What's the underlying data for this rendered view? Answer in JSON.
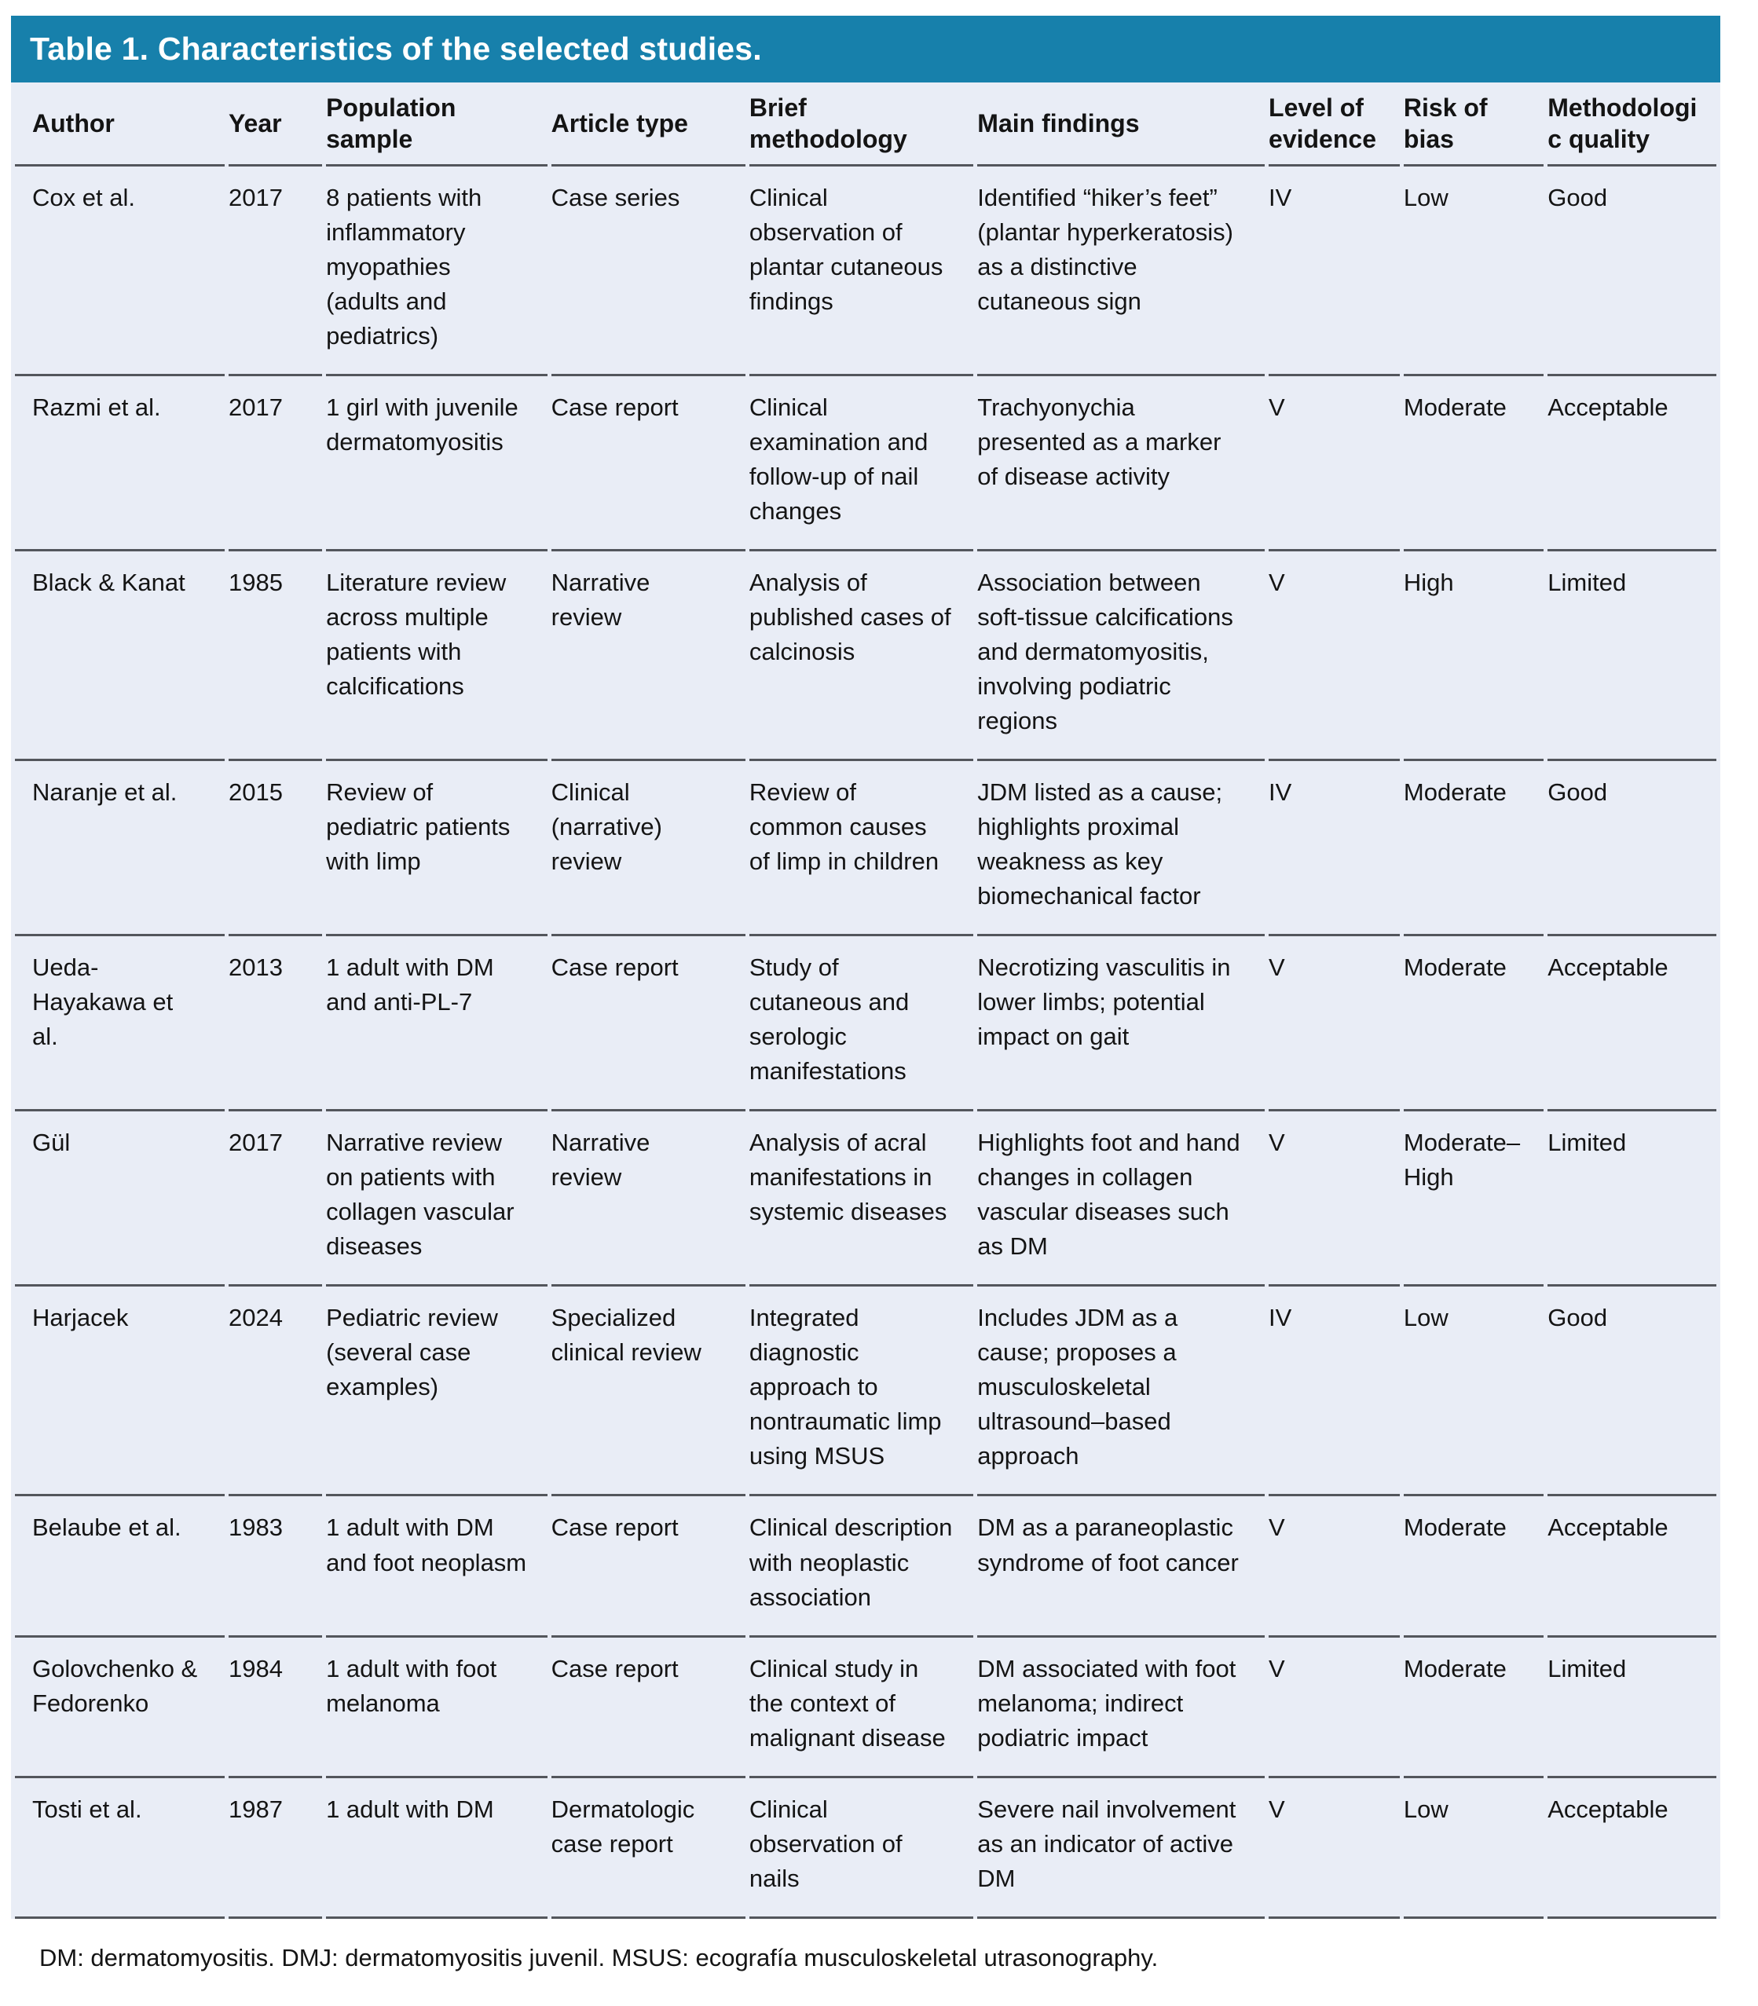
{
  "table": {
    "title": "Table 1. Characteristics of the selected studies.",
    "columns": [
      "Author",
      "Year",
      "Population sample",
      "Article type",
      "Brief methodology",
      "Main findings",
      "Level of evidence",
      "Risk of bias",
      "Methodologic quality"
    ],
    "rows": [
      [
        "Cox et al.",
        "2017",
        "8 patients with inflammatory myopathies (adults and pediatrics)",
        "Case series",
        "Clinical observation of plantar cutaneous findings",
        "Identified “hiker’s feet” (plantar hyperkeratosis) as a distinctive cutaneous sign",
        "IV",
        "Low",
        "Good"
      ],
      [
        "Razmi et al.",
        "2017",
        "1 girl with juvenile dermatomyositis",
        "Case report",
        "Clinical examination and follow-up of nail changes",
        "Trachyonychia presented as a marker of disease activity",
        "V",
        "Moderate",
        "Acceptable"
      ],
      [
        "Black & Kanat",
        "1985",
        "Literature review across multiple patients with calcifications",
        "Narrative review",
        "Analysis of published cases of calcinosis",
        "Association between soft-tissue calcifications and dermatomyositis, involving podiatric regions",
        "V",
        "High",
        "Limited"
      ],
      [
        "Naranje et al.",
        "2015",
        "Review of pediatric patients with limp",
        "Clinical (narrative) review",
        "Review of common causes of limp in children",
        "JDM listed as a cause; highlights proximal weakness as key biomechanical factor",
        "IV",
        "Moderate",
        "Good"
      ],
      [
        "Ueda-Hayakawa et al.",
        "2013",
        "1 adult with DM and anti-PL-7",
        "Case report",
        "Study of cutaneous and serologic manifestations",
        "Necrotizing vasculitis in lower limbs; potential impact on gait",
        "V",
        "Moderate",
        "Acceptable"
      ],
      [
        "Gül",
        "2017",
        "Narrative review on patients with collagen vascular diseases",
        "Narrative review",
        "Analysis of acral manifestations in systemic diseases",
        "Highlights foot and hand changes in collagen vascular diseases such as DM",
        "V",
        "Moderate–High",
        "Limited"
      ],
      [
        "Harjacek",
        "2024",
        "Pediatric review (several case examples)",
        "Specialized clinical review",
        "Integrated diagnostic approach to nontraumatic limp using MSUS",
        "Includes JDM as a cause; proposes a musculoskeletal ultrasound–based approach",
        "IV",
        "Low",
        "Good"
      ],
      [
        "Belaube et al.",
        "1983",
        "1 adult with DM and foot neoplasm",
        "Case report",
        "Clinical description with neoplastic association",
        "DM as a paraneoplastic syndrome of foot cancer",
        "V",
        "Moderate",
        "Acceptable"
      ],
      [
        "Golovchenko & Fedorenko",
        "1984",
        "1 adult with foot melanoma",
        "Case report",
        "Clinical study in the context of malignant disease",
        "DM associated with foot melanoma; indirect podiatric impact",
        "V",
        "Moderate",
        "Limited"
      ],
      [
        "Tosti et al.",
        "1987",
        "1 adult with DM",
        "Dermatologic case report",
        "Clinical observation of nails",
        "Severe nail involvement as an indicator of active DM",
        "V",
        "Low",
        "Acceptable"
      ]
    ],
    "footnote": "DM: dermatomyositis. DMJ: dermatomyositis juvenil. MSUS: ecografía musculoskeletal utrasonography.",
    "colors": {
      "title_bar_background": "#1780ab",
      "title_text": "#ffffff",
      "row_background": "#e9edf6",
      "rule_line": "#53565c",
      "body_text": "#141414"
    }
  }
}
